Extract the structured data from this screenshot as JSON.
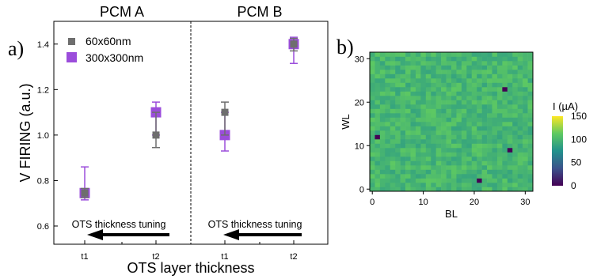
{
  "chart_data": [
    {
      "type": "scatter",
      "panel_label": "a)",
      "xlabel": "OTS layer thickness",
      "ylabel": "V FIRING (a.u.)",
      "ylim": [
        0.52,
        1.5
      ],
      "yticks": [
        0.6,
        0.8,
        1.0,
        1.2,
        1.4
      ],
      "yticklabels": [
        "0.6",
        "0.8",
        "1.0",
        "1.2",
        "1.4"
      ],
      "groups": [
        {
          "name": "PCM A",
          "categories": [
            "t1",
            "t2"
          ],
          "annotation": "OTS thickness tuning"
        },
        {
          "name": "PCM B",
          "categories": [
            "t1",
            "t2"
          ],
          "annotation": "OTS thickness tuning"
        }
      ],
      "series": [
        {
          "name": "60x60nm",
          "color": "#6e6e6e",
          "points": [
            {
              "group": "PCM A",
              "x": "t1",
              "y": 0.745,
              "yerr_low": 0.725,
              "yerr_high": 0.765
            },
            {
              "group": "PCM A",
              "x": "t2",
              "y": 1.0,
              "yerr_low": 0.945,
              "yerr_high": 1.1
            },
            {
              "group": "PCM B",
              "x": "t1",
              "y": 1.1,
              "yerr_low": 1.0,
              "yerr_high": 1.145
            },
            {
              "group": "PCM B",
              "x": "t2",
              "y": 1.4,
              "yerr_low": 1.37,
              "yerr_high": 1.425
            }
          ]
        },
        {
          "name": "300x300nm",
          "color": "#9b4ddb",
          "points": [
            {
              "group": "PCM A",
              "x": "t1",
              "y": 0.745,
              "yerr_low": 0.715,
              "yerr_high": 0.86
            },
            {
              "group": "PCM A",
              "x": "t2",
              "y": 1.1,
              "yerr_low": 1.0,
              "yerr_high": 1.145
            },
            {
              "group": "PCM B",
              "x": "t1",
              "y": 1.0,
              "yerr_low": 0.93,
              "yerr_high": 1.1
            },
            {
              "group": "PCM B",
              "x": "t2",
              "y": 1.4,
              "yerr_low": 1.315,
              "yerr_high": 1.43
            }
          ]
        }
      ],
      "legend_position": "top-left"
    },
    {
      "type": "heatmap",
      "panel_label": "b)",
      "xlabel": "BL",
      "ylabel": "WL",
      "xlim": [
        -0.5,
        31.5
      ],
      "ylim": [
        -0.5,
        31.5
      ],
      "xticks": [
        0,
        10,
        20,
        30
      ],
      "xticklabels": [
        "0",
        "10",
        "20",
        "30"
      ],
      "yticks": [
        0,
        10,
        20,
        30
      ],
      "yticklabels": [
        "0",
        "10",
        "20",
        "30"
      ],
      "grid_size": [
        32,
        32
      ],
      "base_value": 100,
      "variation": 12,
      "outliers": [
        {
          "x": 1,
          "y": 12,
          "value": 0
        },
        {
          "x": 26,
          "y": 23,
          "value": 0
        },
        {
          "x": 27,
          "y": 9,
          "value": 0
        },
        {
          "x": 21,
          "y": 2,
          "value": 0
        }
      ],
      "colorbar": {
        "label": "I (µA)",
        "min": 0,
        "max": 150,
        "ticks": [
          0,
          50,
          100,
          150
        ],
        "ticklabels": [
          "0",
          "50",
          "100",
          "150"
        ],
        "colors": [
          "#440154",
          "#3b528b",
          "#21918c",
          "#5ec962",
          "#fde725"
        ]
      }
    }
  ]
}
